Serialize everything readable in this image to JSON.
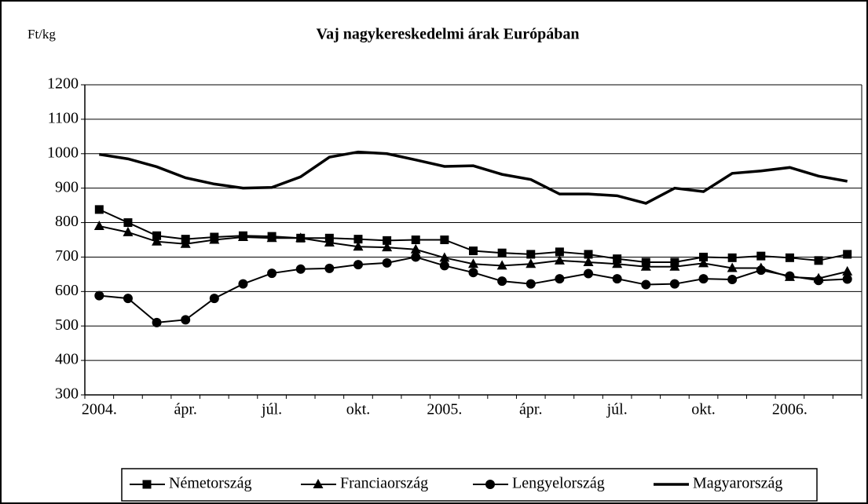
{
  "chart_data": {
    "type": "line",
    "title": "Vaj nagykereskedelmi árak Európában",
    "y_label": "Ft/kg",
    "categories": [
      "2004.",
      null,
      null,
      "ápr.",
      null,
      null,
      "júl.",
      null,
      null,
      "okt.",
      null,
      null,
      "2005.",
      null,
      null,
      "ápr.",
      null,
      null,
      "júl.",
      null,
      null,
      "okt.",
      null,
      null,
      "2006.",
      null,
      null
    ],
    "series": [
      {
        "name": "Németország",
        "color": "#000000",
        "marker": "square",
        "values": [
          838,
          800,
          762,
          752,
          758,
          762,
          760,
          755,
          755,
          752,
          748,
          750,
          750,
          718,
          712,
          708,
          715,
          708,
          695,
          685,
          685,
          700,
          698,
          703,
          698,
          690,
          708
        ]
      },
      {
        "name": "Franciaország",
        "color": "#000000",
        "marker": "triangle",
        "values": [
          790,
          772,
          745,
          738,
          750,
          758,
          755,
          755,
          742,
          730,
          728,
          722,
          698,
          680,
          675,
          680,
          690,
          685,
          680,
          672,
          672,
          682,
          668,
          668,
          642,
          638,
          658
        ]
      },
      {
        "name": "Lengyelország",
        "color": "#000000",
        "marker": "circle",
        "values": [
          588,
          580,
          510,
          518,
          580,
          622,
          653,
          665,
          667,
          678,
          683,
          700,
          675,
          655,
          630,
          622,
          637,
          652,
          637,
          620,
          622,
          637,
          635,
          662,
          645,
          632,
          636
        ]
      },
      {
        "name": "Magyarország",
        "color": "#000000",
        "marker": "none",
        "values": [
          998,
          985,
          962,
          930,
          912,
          900,
          902,
          933,
          990,
          1005,
          1000,
          982,
          963,
          965,
          940,
          925,
          883,
          883,
          878,
          856,
          900,
          890,
          943,
          950,
          960,
          935,
          920
        ]
      }
    ],
    "ylim": [
      300,
      1200
    ],
    "yticks": [
      300,
      400,
      500,
      600,
      700,
      800,
      900,
      1000,
      1100,
      1200
    ],
    "grid": true,
    "legend": "bottom"
  }
}
